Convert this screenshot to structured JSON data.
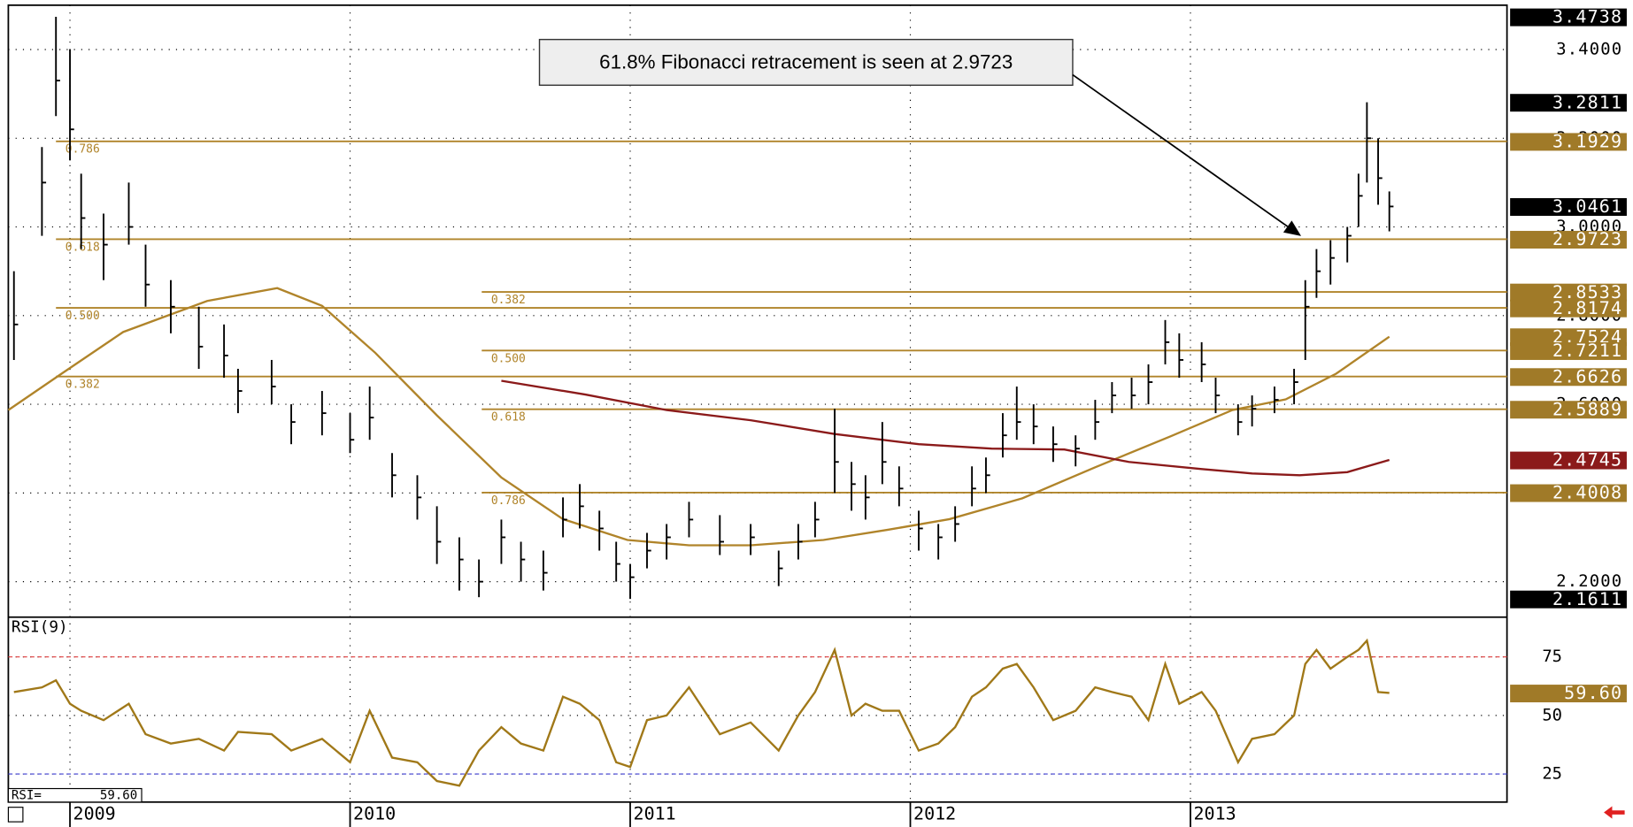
{
  "chart_data": {
    "type": "ohlc",
    "xlim": [
      2008.78,
      2014.13
    ],
    "xticks": [
      2009,
      2010,
      2011,
      2012,
      2013
    ],
    "ylim": [
      2.12,
      3.5
    ],
    "yticks": [
      {
        "value": 2.2,
        "label": "2.2000"
      },
      {
        "value": 2.4,
        "label": "2.4000"
      },
      {
        "value": 2.6,
        "label": "2.6000"
      },
      {
        "value": 2.8,
        "label": "2.8000"
      },
      {
        "value": 3.0,
        "label": "3.0000"
      },
      {
        "value": 3.2,
        "label": "3.2000"
      },
      {
        "value": 3.4,
        "label": "3.4000"
      }
    ],
    "grid": true,
    "bar_color": "#000000",
    "ohlc": {
      "x": [
        2008.8,
        2008.9,
        2008.95,
        2009.0,
        2009.04,
        2009.12,
        2009.21,
        2009.27,
        2009.36,
        2009.46,
        2009.55,
        2009.6,
        2009.72,
        2009.79,
        2009.9,
        2010.0,
        2010.07,
        2010.15,
        2010.24,
        2010.31,
        2010.39,
        2010.46,
        2010.54,
        2010.61,
        2010.69,
        2010.76,
        2010.82,
        2010.89,
        2010.95,
        2011.0,
        2011.06,
        2011.13,
        2011.21,
        2011.32,
        2011.43,
        2011.53,
        2011.6,
        2011.66,
        2011.73,
        2011.79,
        2011.84,
        2011.9,
        2011.96,
        2012.03,
        2012.1,
        2012.16,
        2012.22,
        2012.27,
        2012.33,
        2012.38,
        2012.44,
        2012.51,
        2012.59,
        2012.66,
        2012.72,
        2012.79,
        2012.85,
        2012.91,
        2012.96,
        2013.04,
        2013.09,
        2013.17,
        2013.22,
        2013.3,
        2013.37,
        2013.41,
        2013.45,
        2013.5,
        2013.56,
        2013.6,
        2013.63,
        2013.67,
        2013.71
      ],
      "high": [
        2.9,
        3.18,
        3.4738,
        3.4,
        3.12,
        3.03,
        3.1,
        2.96,
        2.88,
        2.82,
        2.78,
        2.68,
        2.7,
        2.6,
        2.63,
        2.58,
        2.64,
        2.49,
        2.44,
        2.37,
        2.3,
        2.25,
        2.34,
        2.29,
        2.27,
        2.39,
        2.42,
        2.36,
        2.29,
        2.24,
        2.31,
        2.33,
        2.38,
        2.35,
        2.33,
        2.27,
        2.33,
        2.38,
        2.59,
        2.47,
        2.44,
        2.56,
        2.46,
        2.36,
        2.33,
        2.37,
        2.46,
        2.48,
        2.58,
        2.64,
        2.6,
        2.55,
        2.53,
        2.61,
        2.65,
        2.66,
        2.69,
        2.79,
        2.76,
        2.74,
        2.66,
        2.6,
        2.62,
        2.64,
        2.68,
        2.88,
        2.95,
        2.97,
        3.0,
        3.12,
        3.2811,
        3.2,
        3.08
      ],
      "low": [
        2.7,
        2.98,
        3.25,
        3.15,
        2.95,
        2.88,
        2.96,
        2.82,
        2.76,
        2.68,
        2.66,
        2.58,
        2.6,
        2.51,
        2.53,
        2.49,
        2.52,
        2.39,
        2.34,
        2.24,
        2.18,
        2.165,
        2.24,
        2.2,
        2.18,
        2.3,
        2.32,
        2.27,
        2.2,
        2.1611,
        2.23,
        2.25,
        2.3,
        2.26,
        2.26,
        2.19,
        2.25,
        2.3,
        2.4,
        2.36,
        2.34,
        2.42,
        2.37,
        2.27,
        2.25,
        2.29,
        2.37,
        2.4,
        2.48,
        2.52,
        2.51,
        2.47,
        2.46,
        2.52,
        2.58,
        2.59,
        2.6,
        2.69,
        2.66,
        2.65,
        2.58,
        2.53,
        2.55,
        2.58,
        2.6,
        2.7,
        2.84,
        2.87,
        2.92,
        3.0,
        3.1,
        3.05,
        2.99
      ],
      "close": [
        2.78,
        3.1,
        3.33,
        3.22,
        3.02,
        2.96,
        3.0,
        2.87,
        2.82,
        2.73,
        2.71,
        2.63,
        2.64,
        2.56,
        2.58,
        2.52,
        2.57,
        2.44,
        2.39,
        2.29,
        2.25,
        2.2,
        2.3,
        2.25,
        2.22,
        2.34,
        2.37,
        2.32,
        2.24,
        2.21,
        2.27,
        2.3,
        2.34,
        2.29,
        2.3,
        2.23,
        2.29,
        2.34,
        2.47,
        2.42,
        2.39,
        2.47,
        2.41,
        2.32,
        2.3,
        2.33,
        2.41,
        2.44,
        2.53,
        2.56,
        2.55,
        2.51,
        2.5,
        2.56,
        2.62,
        2.62,
        2.65,
        2.74,
        2.7,
        2.69,
        2.62,
        2.56,
        2.59,
        2.61,
        2.65,
        2.82,
        2.9,
        2.93,
        2.98,
        3.07,
        3.2,
        3.11,
        3.0461
      ]
    },
    "moving_averages": [
      {
        "color": "#b0842a",
        "x": [
          2008.78,
          2008.97,
          2009.19,
          2009.49,
          2009.74,
          2009.9,
          2010.09,
          2010.31,
          2010.54,
          2010.76,
          2010.99,
          2011.21,
          2011.43,
          2011.69,
          2011.92,
          2012.14,
          2012.4,
          2012.66,
          2012.93,
          2013.15,
          2013.34,
          2013.52,
          2013.71
        ],
        "values": [
          2.587,
          2.669,
          2.763,
          2.833,
          2.862,
          2.822,
          2.716,
          2.575,
          2.435,
          2.341,
          2.294,
          2.282,
          2.282,
          2.294,
          2.317,
          2.341,
          2.388,
          2.458,
          2.528,
          2.587,
          2.611,
          2.669,
          2.7524
        ]
      },
      {
        "color": "#8b1a1a",
        "x": [
          2010.54,
          2010.84,
          2011.13,
          2011.43,
          2011.73,
          2012.03,
          2012.29,
          2012.55,
          2012.78,
          2013.04,
          2013.22,
          2013.39,
          2013.56,
          2013.71
        ],
        "values": [
          2.653,
          2.622,
          2.587,
          2.564,
          2.533,
          2.51,
          2.5,
          2.498,
          2.47,
          2.454,
          2.444,
          2.44,
          2.447,
          2.4745
        ]
      }
    ],
    "fib_color": "#b0842a",
    "fib_levels": [
      {
        "value": 3.1929,
        "label": "0.786",
        "start": 2008.95
      },
      {
        "value": 2.9723,
        "label": "0.618",
        "start": 2008.95
      },
      {
        "value": 2.8174,
        "label": "0.500",
        "start": 2008.95
      },
      {
        "value": 2.6626,
        "label": "0.382",
        "start": 2008.95
      },
      {
        "value": 2.8533,
        "label": "0.382",
        "start": 2010.47
      },
      {
        "value": 2.7211,
        "label": "0.500",
        "start": 2010.47
      },
      {
        "value": 2.5889,
        "label": "0.618",
        "start": 2010.47
      },
      {
        "value": 2.4008,
        "label": "0.786",
        "start": 2010.47
      }
    ],
    "price_labels": [
      {
        "value": 3.4738,
        "color": "#000000"
      },
      {
        "value": 3.2811,
        "color": "#000000"
      },
      {
        "value": 3.1929,
        "color": "#a07a28"
      },
      {
        "value": 3.0461,
        "color": "#000000"
      },
      {
        "value": 2.9723,
        "color": "#a07a28"
      },
      {
        "value": 2.8533,
        "color": "#a07a28"
      },
      {
        "value": 2.8174,
        "color": "#a07a28"
      },
      {
        "value": 2.7524,
        "color": "#a07a28"
      },
      {
        "value": 2.7211,
        "color": "#a07a28"
      },
      {
        "value": 2.6626,
        "color": "#a07a28"
      },
      {
        "value": 2.5889,
        "color": "#a07a28"
      },
      {
        "value": 2.4745,
        "color": "#8b1a1a"
      },
      {
        "value": 2.4008,
        "color": "#a07a28"
      },
      {
        "value": 2.1611,
        "color": "#000000"
      }
    ],
    "annotation": {
      "text": "61.8% Fibonacci retracement is seen at 2.9723",
      "target_x": 2013.41,
      "target_y": 2.9723
    },
    "rsi": {
      "title": "RSI(9)",
      "readout_prefix": "RSI=",
      "color": "#a07818",
      "ylim": [
        13,
        92
      ],
      "yticks": [
        25,
        50,
        75
      ],
      "levels": [
        {
          "value": 75,
          "color": "#e03a3a"
        },
        {
          "value": 25,
          "color": "#3a3ad0"
        }
      ],
      "values": [
        60,
        62,
        65,
        55,
        52,
        48,
        55,
        42,
        38,
        40,
        35,
        43,
        42,
        35,
        40,
        30,
        52,
        32,
        30,
        22,
        20,
        35,
        45,
        38,
        35,
        58,
        55,
        48,
        30,
        28,
        48,
        50,
        62,
        42,
        47,
        35,
        50,
        60,
        78,
        50,
        55,
        52,
        52,
        35,
        38,
        45,
        58,
        62,
        70,
        72,
        62,
        48,
        52,
        62,
        60,
        58,
        48,
        72,
        55,
        60,
        52,
        30,
        40,
        42,
        50,
        72,
        78,
        70,
        75,
        78,
        82,
        60,
        59.6
      ],
      "last_value_label": "59.60",
      "label_color": "#a07a28"
    }
  }
}
